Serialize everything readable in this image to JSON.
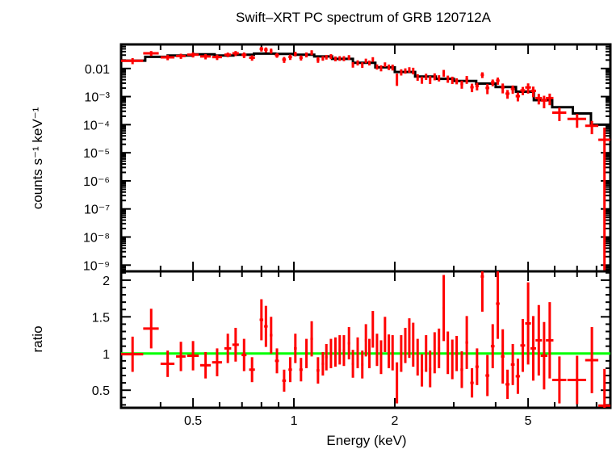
{
  "chart_data": [
    {
      "type": "line",
      "panel": "spectrum",
      "title": "Swift–XRT PC spectrum of GRB 120712A",
      "xlabel": "Energy (keV)",
      "ylabel": "counts s⁻¹ keV⁻¹",
      "xscale": "log",
      "yscale": "log",
      "xlim": [
        0.305,
        8.8
      ],
      "ylim": [
        6e-10,
        0.072
      ],
      "yticks": [
        {
          "value": 0.01,
          "label": "0.01"
        },
        {
          "value": 0.001,
          "label": "10⁻³"
        },
        {
          "value": 0.0001,
          "label": "10⁻⁴"
        },
        {
          "value": 1e-05,
          "label": "10⁻⁵"
        },
        {
          "value": 1e-06,
          "label": "10⁻⁶"
        },
        {
          "value": 1e-07,
          "label": "10⁻⁷"
        },
        {
          "value": 1e-08,
          "label": "10⁻⁸"
        },
        {
          "value": 1e-09,
          "label": "10⁻⁹"
        }
      ],
      "model": {
        "name": "model",
        "color": "#000000",
        "bin_edges": [
          0.305,
          0.36,
          0.42,
          0.5,
          0.58,
          0.66,
          0.76,
          0.88,
          1.0,
          1.15,
          1.3,
          1.5,
          1.75,
          2.0,
          2.3,
          2.65,
          3.0,
          3.5,
          4.0,
          4.6,
          5.2,
          5.9,
          6.8,
          7.7,
          8.8
        ],
        "values": [
          0.019,
          0.026,
          0.029,
          0.032,
          0.029,
          0.031,
          0.034,
          0.033,
          0.031,
          0.027,
          0.022,
          0.016,
          0.011,
          0.0075,
          0.0052,
          0.0043,
          0.0036,
          0.0029,
          0.0022,
          0.0015,
          0.00075,
          0.00042,
          0.00025,
          0.0001
        ]
      },
      "series_name": "data",
      "color": "#ff0000"
    },
    {
      "type": "scatter",
      "panel": "ratio",
      "xlabel": "Energy (keV)",
      "ylabel": "ratio",
      "xscale": "log",
      "xlim": [
        0.305,
        8.8
      ],
      "ylim": [
        0.26,
        2.12
      ],
      "xticks": [
        {
          "value": 0.5,
          "label": "0.5"
        },
        {
          "value": 1,
          "label": "1"
        },
        {
          "value": 2,
          "label": "2"
        },
        {
          "value": 5,
          "label": "5"
        }
      ],
      "yticks": [
        {
          "value": 0.5,
          "label": "0.5"
        },
        {
          "value": 1,
          "label": "1"
        },
        {
          "value": 1.5,
          "label": "1.5"
        },
        {
          "value": 2,
          "label": "2"
        }
      ],
      "reference_line": {
        "value": 1,
        "color": "#00ff00"
      },
      "color": "#ff0000",
      "points": [
        {
          "e": 0.33,
          "de": 0.025,
          "r": 0.99,
          "dr": 0.24
        },
        {
          "e": 0.375,
          "de": 0.02,
          "r": 1.34,
          "dr": 0.27
        },
        {
          "e": 0.42,
          "de": 0.02,
          "r": 0.86,
          "dr": 0.18
        },
        {
          "e": 0.46,
          "de": 0.015,
          "r": 0.96,
          "dr": 0.2
        },
        {
          "e": 0.5,
          "de": 0.02,
          "r": 0.97,
          "dr": 0.2
        },
        {
          "e": 0.545,
          "de": 0.02,
          "r": 0.84,
          "dr": 0.18
        },
        {
          "e": 0.59,
          "de": 0.02,
          "r": 0.88,
          "dr": 0.19
        },
        {
          "e": 0.635,
          "de": 0.015,
          "r": 1.07,
          "dr": 0.2
        },
        {
          "e": 0.67,
          "de": 0.015,
          "r": 1.12,
          "dr": 0.23
        },
        {
          "e": 0.71,
          "de": 0.012,
          "r": 0.98,
          "dr": 0.22
        },
        {
          "e": 0.75,
          "de": 0.015,
          "r": 0.78,
          "dr": 0.17
        },
        {
          "e": 0.8,
          "de": 0.01,
          "r": 1.46,
          "dr": 0.28
        },
        {
          "e": 0.825,
          "de": 0.01,
          "r": 1.37,
          "dr": 0.28
        },
        {
          "e": 0.855,
          "de": 0.008,
          "r": 1.25,
          "dr": 0.25
        },
        {
          "e": 0.89,
          "de": 0.012,
          "r": 0.9,
          "dr": 0.17
        },
        {
          "e": 0.935,
          "de": 0.012,
          "r": 0.63,
          "dr": 0.15
        },
        {
          "e": 0.975,
          "de": 0.012,
          "r": 0.78,
          "dr": 0.17
        },
        {
          "e": 1.01,
          "de": 0.01,
          "r": 1.07,
          "dr": 0.2
        },
        {
          "e": 1.05,
          "de": 0.012,
          "r": 0.78,
          "dr": 0.16
        },
        {
          "e": 1.09,
          "de": 0.01,
          "r": 1.0,
          "dr": 0.2
        },
        {
          "e": 1.13,
          "de": 0.01,
          "r": 1.2,
          "dr": 0.24
        },
        {
          "e": 1.18,
          "de": 0.012,
          "r": 0.77,
          "dr": 0.18
        },
        {
          "e": 1.22,
          "de": 0.01,
          "r": 0.86,
          "dr": 0.16
        },
        {
          "e": 1.25,
          "de": 0.01,
          "r": 0.95,
          "dr": 0.18
        },
        {
          "e": 1.29,
          "de": 0.012,
          "r": 1.0,
          "dr": 0.2
        },
        {
          "e": 1.33,
          "de": 0.01,
          "r": 1.02,
          "dr": 0.2
        },
        {
          "e": 1.37,
          "de": 0.01,
          "r": 1.05,
          "dr": 0.2
        },
        {
          "e": 1.41,
          "de": 0.012,
          "r": 1.04,
          "dr": 0.21
        },
        {
          "e": 1.46,
          "de": 0.012,
          "r": 1.14,
          "dr": 0.22
        },
        {
          "e": 1.5,
          "de": 0.012,
          "r": 0.86,
          "dr": 0.19
        },
        {
          "e": 1.55,
          "de": 0.012,
          "r": 1.01,
          "dr": 0.21
        },
        {
          "e": 1.6,
          "de": 0.012,
          "r": 0.85,
          "dr": 0.19
        },
        {
          "e": 1.64,
          "de": 0.012,
          "r": 1.18,
          "dr": 0.22
        },
        {
          "e": 1.68,
          "de": 0.012,
          "r": 1.0,
          "dr": 0.2
        },
        {
          "e": 1.72,
          "de": 0.012,
          "r": 1.33,
          "dr": 0.25
        },
        {
          "e": 1.77,
          "de": 0.012,
          "r": 1.05,
          "dr": 0.22
        },
        {
          "e": 1.82,
          "de": 0.012,
          "r": 0.95,
          "dr": 0.23
        },
        {
          "e": 1.87,
          "de": 0.012,
          "r": 1.26,
          "dr": 0.24
        },
        {
          "e": 1.92,
          "de": 0.012,
          "r": 1.03,
          "dr": 0.23
        },
        {
          "e": 1.97,
          "de": 0.015,
          "r": 1.01,
          "dr": 0.24
        },
        {
          "e": 2.03,
          "de": 0.012,
          "r": 0.6,
          "dr": 0.28
        },
        {
          "e": 2.09,
          "de": 0.015,
          "r": 1.0,
          "dr": 0.25
        },
        {
          "e": 2.15,
          "de": 0.015,
          "r": 1.11,
          "dr": 0.24
        },
        {
          "e": 2.21,
          "de": 0.015,
          "r": 1.21,
          "dr": 0.27
        },
        {
          "e": 2.27,
          "de": 0.015,
          "r": 1.12,
          "dr": 0.3
        },
        {
          "e": 2.34,
          "de": 0.015,
          "r": 0.95,
          "dr": 0.25
        },
        {
          "e": 2.41,
          "de": 0.02,
          "r": 0.77,
          "dr": 0.22
        },
        {
          "e": 2.48,
          "de": 0.015,
          "r": 1.0,
          "dr": 0.25
        },
        {
          "e": 2.55,
          "de": 0.02,
          "r": 0.79,
          "dr": 0.25
        },
        {
          "e": 2.63,
          "de": 0.015,
          "r": 1.01,
          "dr": 0.28
        },
        {
          "e": 2.71,
          "de": 0.02,
          "r": 1.07,
          "dr": 0.27
        },
        {
          "e": 2.8,
          "de": 0.02,
          "r": 1.62,
          "dr": 0.45
        },
        {
          "e": 2.88,
          "de": 0.02,
          "r": 1.01,
          "dr": 0.29
        },
        {
          "e": 2.97,
          "de": 0.02,
          "r": 0.92,
          "dr": 0.27
        },
        {
          "e": 3.06,
          "de": 0.03,
          "r": 1.0,
          "dr": 0.24
        },
        {
          "e": 3.17,
          "de": 0.03,
          "r": 0.78,
          "dr": 0.25
        },
        {
          "e": 3.28,
          "de": 0.03,
          "r": 1.15,
          "dr": 0.36
        },
        {
          "e": 3.4,
          "de": 0.04,
          "r": 0.6,
          "dr": 0.2
        },
        {
          "e": 3.52,
          "de": 0.04,
          "r": 0.82,
          "dr": 0.25
        },
        {
          "e": 3.65,
          "de": 0.04,
          "r": 2.05,
          "dr": 0.48
        },
        {
          "e": 3.78,
          "de": 0.05,
          "r": 0.7,
          "dr": 0.28
        },
        {
          "e": 3.92,
          "de": 0.05,
          "r": 1.1,
          "dr": 0.3
        },
        {
          "e": 4.06,
          "de": 0.05,
          "r": 1.68,
          "dr": 0.48
        },
        {
          "e": 4.2,
          "de": 0.05,
          "r": 0.96,
          "dr": 0.37
        },
        {
          "e": 4.34,
          "de": 0.06,
          "r": 0.58,
          "dr": 0.2
        },
        {
          "e": 4.5,
          "de": 0.06,
          "r": 0.85,
          "dr": 0.28
        },
        {
          "e": 4.66,
          "de": 0.07,
          "r": 0.69,
          "dr": 0.24
        },
        {
          "e": 4.82,
          "de": 0.08,
          "r": 1.11,
          "dr": 0.36
        },
        {
          "e": 5.0,
          "de": 0.1,
          "r": 1.41,
          "dr": 0.56
        },
        {
          "e": 5.18,
          "de": 0.1,
          "r": 1.07,
          "dr": 0.44
        },
        {
          "e": 5.38,
          "de": 0.12,
          "r": 1.18,
          "dr": 0.48
        },
        {
          "e": 5.58,
          "de": 0.13,
          "r": 0.97,
          "dr": 0.46
        },
        {
          "e": 5.8,
          "de": 0.15,
          "r": 1.18,
          "dr": 0.52
        },
        {
          "e": 6.2,
          "de": 0.3,
          "r": 0.64,
          "dr": 0.32
        },
        {
          "e": 7.0,
          "de": 0.45,
          "r": 0.64,
          "dr": 0.33
        },
        {
          "e": 7.75,
          "de": 0.35,
          "r": 0.91,
          "dr": 0.45
        },
        {
          "e": 8.45,
          "de": 0.35,
          "r": 0.29,
          "dr": 0.5
        }
      ]
    }
  ]
}
